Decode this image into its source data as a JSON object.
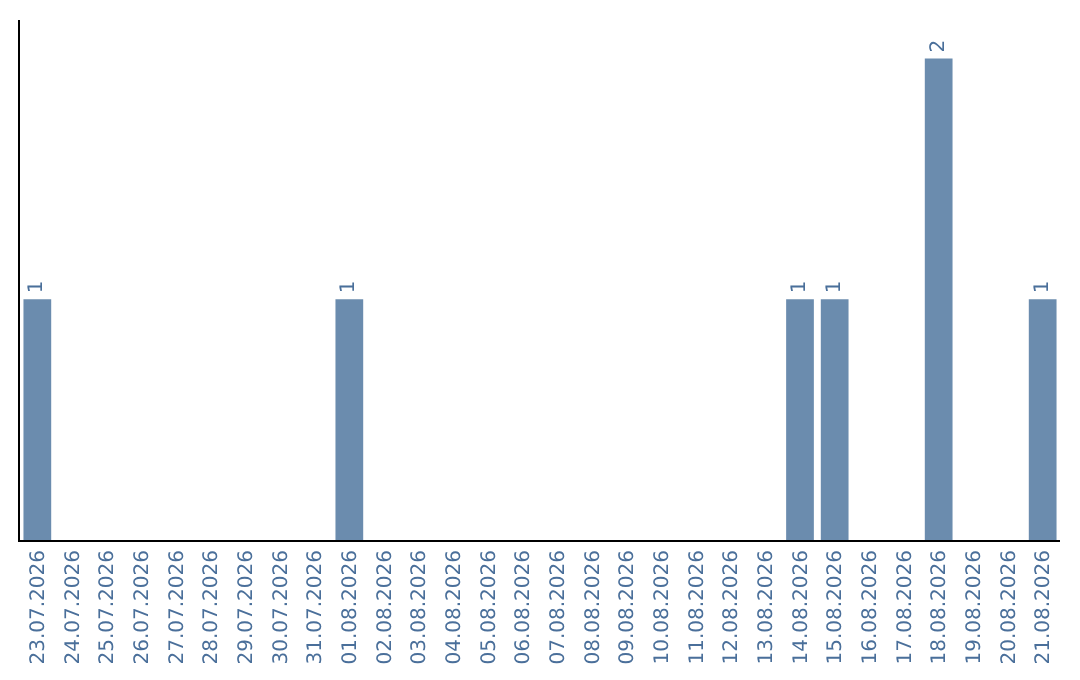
{
  "chart_data": {
    "type": "bar",
    "categories": [
      "23.07.2026",
      "24.07.2026",
      "25.07.2026",
      "26.07.2026",
      "27.07.2026",
      "28.07.2026",
      "29.07.2026",
      "30.07.2026",
      "31.07.2026",
      "01.08.2026",
      "02.08.2026",
      "03.08.2026",
      "04.08.2026",
      "05.08.2026",
      "06.08.2026",
      "07.08.2026",
      "08.08.2026",
      "09.08.2026",
      "10.08.2026",
      "11.08.2026",
      "12.08.2026",
      "13.08.2026",
      "14.08.2026",
      "15.08.2026",
      "16.08.2026",
      "17.08.2026",
      "18.08.2026",
      "19.08.2026",
      "20.08.2026",
      "21.08.2026"
    ],
    "values": [
      1,
      0,
      0,
      0,
      0,
      0,
      0,
      0,
      0,
      1,
      0,
      0,
      0,
      0,
      0,
      0,
      0,
      0,
      0,
      0,
      0,
      0,
      1,
      1,
      0,
      0,
      2,
      0,
      0,
      1
    ],
    "value_labels": [
      "1",
      null,
      null,
      null,
      null,
      null,
      null,
      null,
      null,
      "1",
      null,
      null,
      null,
      null,
      null,
      null,
      null,
      null,
      null,
      null,
      null,
      null,
      "1",
      "1",
      null,
      null,
      "2",
      null,
      null,
      "1"
    ],
    "color": "#6b8cae"
  }
}
